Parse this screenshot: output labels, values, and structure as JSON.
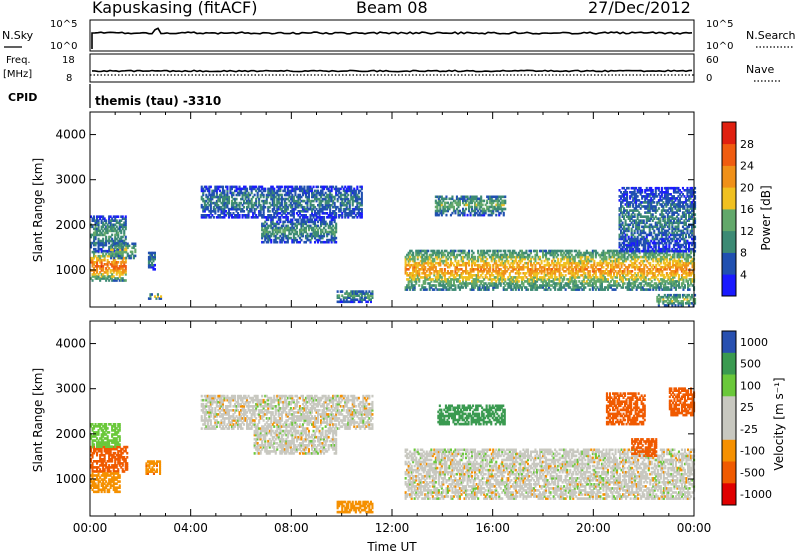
{
  "header": {
    "station": "Kapuskasing (fitACF)",
    "beam": "Beam 08",
    "date": "27/Dec/2012"
  },
  "summary": {
    "nsky_label": "N.Sky",
    "nsearch_label": "N.Search",
    "freq_label": "Freq.",
    "freq_unit": "[MHz]",
    "nave_label": "Nave",
    "cpid_label": "CPID",
    "cpid_text": "themis (tau) -3310",
    "noise_ticks_left": [
      "10^5",
      "10^0"
    ],
    "noise_ticks_right": [
      "10^5",
      "10^0"
    ],
    "freq_ticks": [
      "18",
      "8"
    ],
    "nave_ticks": [
      "60",
      "0"
    ]
  },
  "colors": {
    "power_scale": [
      "#1a1aff",
      "#2050b0",
      "#3c8a74",
      "#62a86a",
      "#f0c020",
      "#f09018",
      "#f05c10",
      "#e02010"
    ],
    "velocity_scale": [
      "#e00000",
      "#f05a00",
      "#f59000",
      "#c8c8c0",
      "#c8c8c0",
      "#6ac83a",
      "#3a9a50",
      "#2850b0"
    ]
  },
  "chart_data": [
    {
      "type": "heatmap",
      "title": "Power",
      "ylabel": "Slant Range [km]",
      "xlim": [
        0,
        24
      ],
      "ylim": [
        180,
        4500
      ],
      "yticks": [
        1000,
        2000,
        3000,
        4000
      ],
      "colorbar": {
        "label": "Power [dB]",
        "ticks": [
          "4",
          "8",
          "12",
          "16",
          "20",
          "24",
          "28"
        ],
        "range": [
          0,
          32
        ]
      },
      "echo_regions": [
        {
          "t": [
            0.0,
            1.4
          ],
          "range": [
            750,
            1400
          ],
          "level_db": 22
        },
        {
          "t": [
            0.0,
            1.4
          ],
          "range": [
            1400,
            2200
          ],
          "level_db": 10
        },
        {
          "t": [
            0.8,
            1.8
          ],
          "range": [
            1250,
            1600
          ],
          "level_db": 14
        },
        {
          "t": [
            2.3,
            2.6
          ],
          "range": [
            1000,
            1400
          ],
          "level_db": 8
        },
        {
          "t": [
            2.3,
            2.9
          ],
          "range": [
            350,
            450
          ],
          "level_db": 16
        },
        {
          "t": [
            4.4,
            10.8
          ],
          "range": [
            2150,
            2850
          ],
          "level_db": 8
        },
        {
          "t": [
            6.8,
            9.8
          ],
          "range": [
            1600,
            2100
          ],
          "level_db": 10
        },
        {
          "t": [
            9.8,
            11.2
          ],
          "range": [
            280,
            550
          ],
          "level_db": 10
        },
        {
          "t": [
            13.7,
            16.5
          ],
          "range": [
            2200,
            2650
          ],
          "level_db": 12
        },
        {
          "t": [
            12.5,
            24.0
          ],
          "range": [
            550,
            1450
          ],
          "level_db": 19
        },
        {
          "t": [
            21.0,
            24.0
          ],
          "range": [
            1400,
            2800
          ],
          "level_db": 8
        },
        {
          "t": [
            22.5,
            24.0
          ],
          "range": [
            200,
            450
          ],
          "level_db": 14
        }
      ]
    },
    {
      "type": "heatmap",
      "title": "Velocity",
      "ylabel": "Slant Range [km]",
      "xlabel": "Time UT",
      "xlim": [
        0,
        24
      ],
      "ylim": [
        180,
        4500
      ],
      "xticks": [
        "00:00",
        "04:00",
        "08:00",
        "12:00",
        "16:00",
        "20:00",
        "00:00"
      ],
      "yticks": [
        1000,
        2000,
        3000,
        4000
      ],
      "colorbar": {
        "label": "Velocity [m s⁻¹]",
        "ticks": [
          "1000",
          "500",
          "100",
          "25",
          "-25",
          "-100",
          "-500",
          "-1000"
        ]
      },
      "echo_regions": [
        {
          "t": [
            0.0,
            1.5
          ],
          "range": [
            1150,
            1700
          ],
          "velocity": -400
        },
        {
          "t": [
            0.0,
            1.2
          ],
          "range": [
            700,
            1150
          ],
          "velocity": -60
        },
        {
          "t": [
            0.0,
            1.2
          ],
          "range": [
            1700,
            2200
          ],
          "velocity": 60
        },
        {
          "t": [
            2.2,
            2.8
          ],
          "range": [
            1100,
            1400
          ],
          "velocity": -80
        },
        {
          "t": [
            4.4,
            11.2
          ],
          "range": [
            2100,
            2850
          ],
          "velocity": 0
        },
        {
          "t": [
            6.5,
            9.8
          ],
          "range": [
            1550,
            2050
          ],
          "velocity": 0
        },
        {
          "t": [
            13.8,
            16.5
          ],
          "range": [
            2200,
            2650
          ],
          "velocity": 150
        },
        {
          "t": [
            12.5,
            24.0
          ],
          "range": [
            550,
            1650
          ],
          "velocity": 0
        },
        {
          "t": [
            20.5,
            22.0
          ],
          "range": [
            2200,
            2900
          ],
          "velocity": -300
        },
        {
          "t": [
            23.0,
            24.0
          ],
          "range": [
            2400,
            3000
          ],
          "velocity": -150
        },
        {
          "t": [
            21.5,
            22.5
          ],
          "range": [
            1500,
            1900
          ],
          "velocity": -300
        },
        {
          "t": [
            9.8,
            11.2
          ],
          "range": [
            250,
            500
          ],
          "velocity": -60
        }
      ]
    }
  ]
}
